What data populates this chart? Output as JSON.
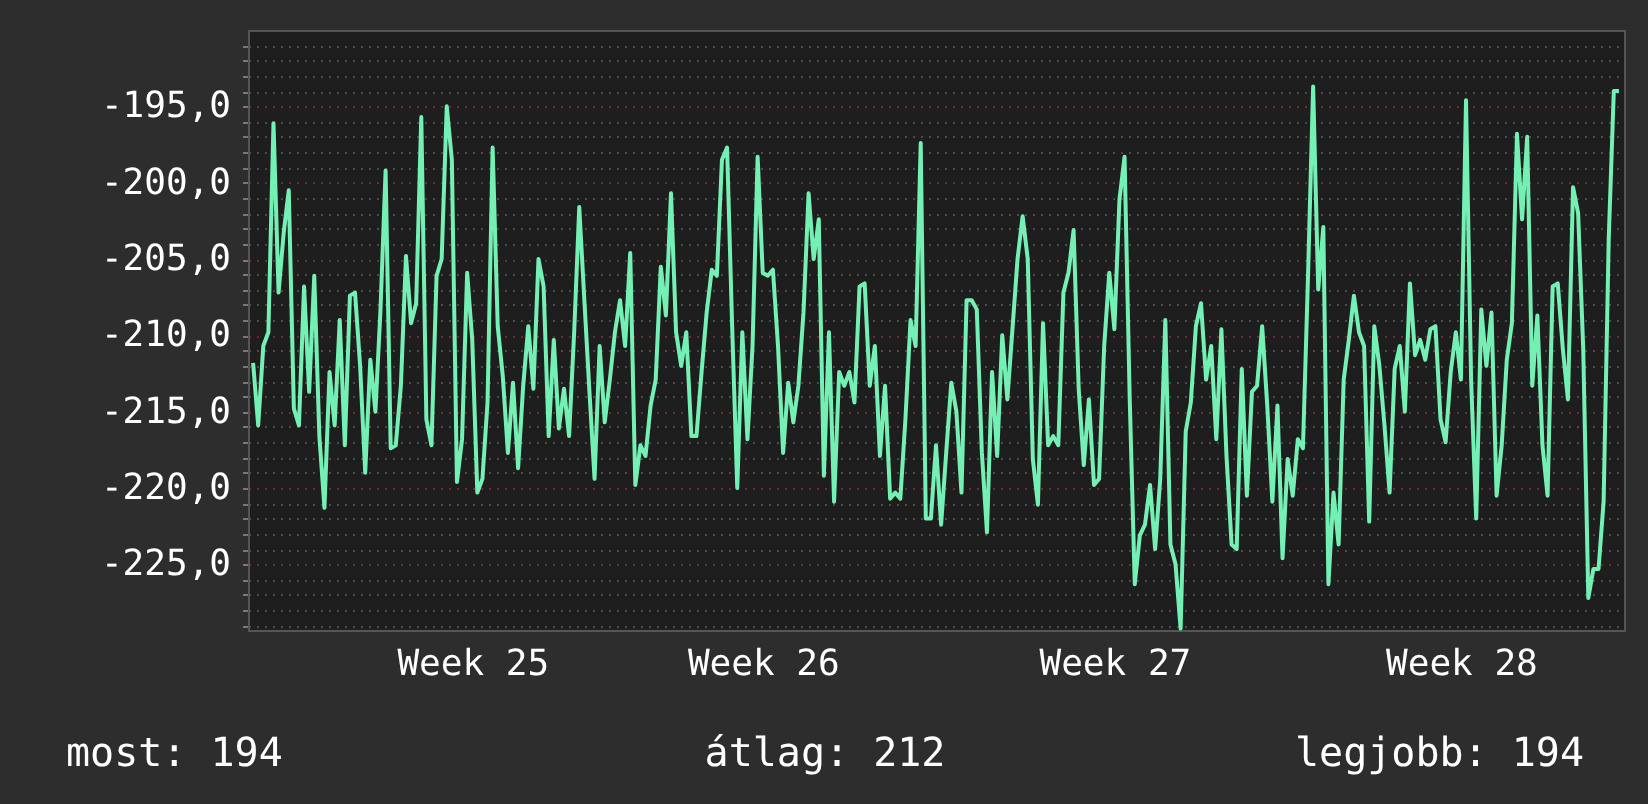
{
  "chart_data": {
    "type": "line",
    "annotations": [
      "most: 194",
      "átlag: 212",
      "legjobb: 194"
    ],
    "ylim": [
      -229.3,
      -190
    ],
    "categories": [
      null,
      null,
      null,
      null,
      null,
      null,
      null,
      null,
      null,
      null,
      null,
      null,
      null,
      null,
      null,
      null,
      null,
      null,
      null,
      null,
      null,
      null,
      null,
      null,
      null,
      null,
      null,
      null,
      null,
      null,
      null,
      null,
      null,
      null,
      null,
      null,
      null,
      null,
      null,
      null,
      null,
      null,
      null,
      "Week 25",
      null,
      null,
      null,
      null,
      null,
      null,
      null,
      null,
      null,
      null,
      null,
      null,
      null,
      null,
      null,
      null,
      null,
      null,
      null,
      null,
      null,
      null,
      null,
      null,
      null,
      null,
      null,
      null,
      null,
      null,
      null,
      null,
      null,
      null,
      null,
      null,
      null,
      null,
      null,
      null,
      null,
      null,
      null,
      null,
      null,
      null,
      null,
      null,
      null,
      null,
      null,
      null,
      null,
      null,
      null,
      null,
      "Week 26",
      null,
      null,
      null,
      null,
      null,
      null,
      null,
      null,
      null,
      null,
      null,
      null,
      null,
      null,
      null,
      null,
      null,
      null,
      null,
      null,
      null,
      null,
      null,
      null,
      null,
      null,
      null,
      null,
      null,
      null,
      null,
      null,
      null,
      null,
      null,
      null,
      null,
      null,
      null,
      null,
      null,
      null,
      null,
      null,
      null,
      null,
      null,
      null,
      null,
      null,
      null,
      null,
      null,
      null,
      null,
      null,
      null,
      null,
      null,
      null,
      null,
      null,
      null,
      null,
      null,
      null,
      null,
      null,
      "Week 27",
      null,
      null,
      null,
      null,
      null,
      null,
      null,
      null,
      null,
      null,
      null,
      null,
      null,
      null,
      null,
      null,
      null,
      null,
      null,
      null,
      null,
      null,
      null,
      null,
      null,
      null,
      null,
      null,
      null,
      null,
      null,
      null,
      null,
      null,
      null,
      null,
      null,
      null,
      null,
      null,
      null,
      null,
      null,
      null,
      null,
      null,
      null,
      null,
      null,
      null,
      null,
      null,
      null,
      null,
      null,
      null,
      null,
      null,
      null,
      null,
      null,
      null,
      null,
      null,
      null,
      null,
      null,
      "Week 28",
      null,
      null,
      null,
      null,
      null,
      null,
      null,
      null,
      null,
      null,
      null,
      null,
      null,
      null,
      null,
      null,
      null,
      null,
      null,
      null,
      null,
      null,
      null,
      null,
      null,
      null,
      null,
      null,
      null,
      null,
      null
    ],
    "yticks": [
      {
        "value": -195,
        "label": "-195,0"
      },
      {
        "value": -200,
        "label": "-200,0"
      },
      {
        "value": -205,
        "label": "-205,0"
      },
      {
        "value": -210,
        "label": "-210,0"
      },
      {
        "value": -215,
        "label": "-215,0"
      },
      {
        "value": -220,
        "label": "-220,0"
      },
      {
        "value": -225,
        "label": "-225,0"
      },
      {
        "value": -191,
        "label": null
      },
      {
        "value": -192,
        "label": null
      },
      {
        "value": -193,
        "label": null
      },
      {
        "value": -194,
        "label": null
      },
      {
        "value": -196,
        "label": null
      },
      {
        "value": -197,
        "label": null
      },
      {
        "value": -198,
        "label": null
      },
      {
        "value": -199,
        "label": null
      },
      {
        "value": -201,
        "label": null
      },
      {
        "value": -202,
        "label": null
      },
      {
        "value": -203,
        "label": null
      },
      {
        "value": -204,
        "label": null
      },
      {
        "value": -206,
        "label": null
      },
      {
        "value": -207,
        "label": null
      },
      {
        "value": -208,
        "label": null
      },
      {
        "value": -209,
        "label": null
      },
      {
        "value": -211,
        "label": null
      },
      {
        "value": -212,
        "label": null
      },
      {
        "value": -213,
        "label": null
      },
      {
        "value": -214,
        "label": null
      },
      {
        "value": -216,
        "label": null
      },
      {
        "value": -217,
        "label": null
      },
      {
        "value": -218,
        "label": null
      },
      {
        "value": -219,
        "label": null
      },
      {
        "value": -221,
        "label": null
      },
      {
        "value": -222,
        "label": null
      },
      {
        "value": -223,
        "label": null
      },
      {
        "value": -224,
        "label": null
      },
      {
        "value": -226,
        "label": null
      },
      {
        "value": -227,
        "label": null
      },
      {
        "value": -228,
        "label": null
      },
      {
        "value": -229,
        "label": null
      }
    ],
    "grid": "y",
    "line_style": "solid",
    "marker": "none",
    "series": [
      {
        "color": "#74f0b4",
        "values": [
          -211.8,
          -215.9,
          -210.7,
          -209.8,
          -196.1,
          -207.2,
          -203.3,
          -200.5,
          -214.8,
          -215.9,
          -206.8,
          -213.7,
          -206.1,
          -216.6,
          -221.3,
          -212.4,
          -215.9,
          -209.0,
          -217.2,
          -207.4,
          -207.2,
          -212.0,
          -219.0,
          -211.6,
          -215.0,
          -208.3,
          -199.2,
          -217.4,
          -217.2,
          -213.3,
          -204.8,
          -209.2,
          -207.9,
          -195.7,
          -215.5,
          -217.2,
          -206.1,
          -205.0,
          -195.0,
          -198.5,
          -219.6,
          -216.8,
          -205.9,
          -210.3,
          -220.3,
          -219.4,
          -214.4,
          -197.7,
          -209.4,
          -212.7,
          -217.7,
          -213.1,
          -218.7,
          -213.3,
          -209.4,
          -213.5,
          -205.0,
          -206.8,
          -216.6,
          -210.3,
          -216.1,
          -213.5,
          -216.6,
          -209.8,
          -201.6,
          -207.7,
          -213.7,
          -219.4,
          -210.7,
          -215.7,
          -212.9,
          -209.8,
          -207.7,
          -210.7,
          -204.6,
          -219.8,
          -217.2,
          -217.9,
          -214.6,
          -212.9,
          -205.5,
          -208.7,
          -200.7,
          -209.8,
          -212.0,
          -209.8,
          -216.6,
          -216.6,
          -212.4,
          -208.5,
          -205.7,
          -206.1,
          -198.5,
          -197.7,
          -209.4,
          -220.0,
          -209.8,
          -216.8,
          -210.7,
          -198.3,
          -205.9,
          -206.1,
          -205.7,
          -210.7,
          -217.7,
          -213.1,
          -215.7,
          -213.3,
          -208.5,
          -200.7,
          -205.0,
          -202.4,
          -219.2,
          -209.8,
          -220.9,
          -212.4,
          -213.3,
          -212.4,
          -214.4,
          -206.8,
          -206.6,
          -213.3,
          -210.7,
          -217.9,
          -213.3,
          -220.7,
          -220.3,
          -220.7,
          -215.5,
          -209.0,
          -210.7,
          -197.4,
          -222.0,
          -222.0,
          -217.2,
          -222.4,
          -217.7,
          -213.1,
          -215.0,
          -220.3,
          -207.7,
          -207.7,
          -208.3,
          -217.7,
          -222.9,
          -212.4,
          -217.9,
          -210.0,
          -214.2,
          -209.6,
          -205.0,
          -202.2,
          -205.0,
          -218.1,
          -221.1,
          -209.2,
          -217.2,
          -216.6,
          -217.2,
          -207.2,
          -205.9,
          -203.1,
          -213.5,
          -218.5,
          -214.2,
          -219.8,
          -219.4,
          -210.7,
          -205.9,
          -209.6,
          -201.1,
          -198.3,
          -214.0,
          -226.3,
          -223.1,
          -222.4,
          -219.8,
          -224.0,
          -219.4,
          -209.0,
          -223.7,
          -225.0,
          -229.2,
          -216.3,
          -214.4,
          -209.4,
          -207.9,
          -212.9,
          -210.7,
          -216.8,
          -209.6,
          -217.9,
          -223.7,
          -224.0,
          -212.2,
          -220.5,
          -213.7,
          -213.3,
          -209.4,
          -214.6,
          -220.9,
          -214.6,
          -224.6,
          -218.1,
          -220.5,
          -216.8,
          -217.4,
          -206.1,
          -193.7,
          -207.0,
          -202.9,
          -226.3,
          -220.3,
          -223.7,
          -212.9,
          -210.3,
          -207.4,
          -209.8,
          -210.7,
          -222.2,
          -209.4,
          -212.0,
          -215.9,
          -220.3,
          -212.2,
          -210.7,
          -215.0,
          -206.6,
          -211.3,
          -210.3,
          -211.6,
          -209.6,
          -209.4,
          -215.5,
          -217.0,
          -212.4,
          -209.8,
          -212.9,
          -194.6,
          -212.9,
          -222.0,
          -208.3,
          -212.0,
          -208.5,
          -220.5,
          -217.2,
          -211.6,
          -209.2,
          -196.8,
          -202.4,
          -197.0,
          -213.3,
          -208.7,
          -217.2,
          -220.5,
          -206.8,
          -206.6,
          -210.9,
          -214.2,
          -200.3,
          -202.0,
          -210.9,
          -227.2,
          -225.3,
          -225.3,
          -220.9,
          -203.7,
          -194.0,
          -194.0
        ]
      }
    ]
  }
}
